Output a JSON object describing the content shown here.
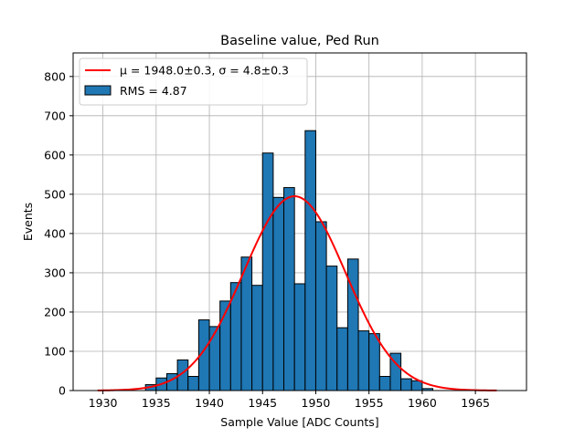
{
  "chart_data": {
    "type": "histogram",
    "title": "Baseline value, Ped Run",
    "xlabel": "Sample Value [ADC Counts]",
    "ylabel": "Events",
    "xlim": [
      1927.2,
      1969.8
    ],
    "ylim": [
      0,
      860
    ],
    "xticks": [
      1930,
      1935,
      1940,
      1945,
      1950,
      1955,
      1960,
      1965
    ],
    "yticks": [
      0,
      100,
      200,
      300,
      400,
      500,
      600,
      700,
      800
    ],
    "grid": true,
    "legend_position": "top-left",
    "bar_color": "#1f77b4",
    "bin_width": 1,
    "bins": [
      {
        "x": 1934,
        "count": 15
      },
      {
        "x": 1935,
        "count": 32
      },
      {
        "x": 1936,
        "count": 43
      },
      {
        "x": 1937,
        "count": 78
      },
      {
        "x": 1938,
        "count": 36
      },
      {
        "x": 1939,
        "count": 180
      },
      {
        "x": 1940,
        "count": 163
      },
      {
        "x": 1941,
        "count": 228
      },
      {
        "x": 1942,
        "count": 275
      },
      {
        "x": 1943,
        "count": 340
      },
      {
        "x": 1944,
        "count": 268
      },
      {
        "x": 1945,
        "count": 605
      },
      {
        "x": 1946,
        "count": 492
      },
      {
        "x": 1947,
        "count": 517
      },
      {
        "x": 1948,
        "count": 272
      },
      {
        "x": 1949,
        "count": 662
      },
      {
        "x": 1950,
        "count": 430
      },
      {
        "x": 1951,
        "count": 317
      },
      {
        "x": 1952,
        "count": 160
      },
      {
        "x": 1953,
        "count": 335
      },
      {
        "x": 1954,
        "count": 152
      },
      {
        "x": 1955,
        "count": 145
      },
      {
        "x": 1956,
        "count": 36
      },
      {
        "x": 1957,
        "count": 95
      },
      {
        "x": 1958,
        "count": 30
      },
      {
        "x": 1959,
        "count": 25
      },
      {
        "x": 1960,
        "count": 5
      }
    ],
    "fit": {
      "type": "gaussian",
      "mu": 1948.0,
      "sigma": 4.8,
      "amplitude": 495,
      "x_range": [
        1929.5,
        1967.0
      ],
      "color": "#ff0000"
    },
    "legend": [
      {
        "kind": "line",
        "label": "μ = 1948.0±0.3, σ = 4.8±0.3",
        "color": "#ff0000"
      },
      {
        "kind": "patch",
        "label": "RMS = 4.87",
        "color": "#1f77b4"
      }
    ]
  }
}
